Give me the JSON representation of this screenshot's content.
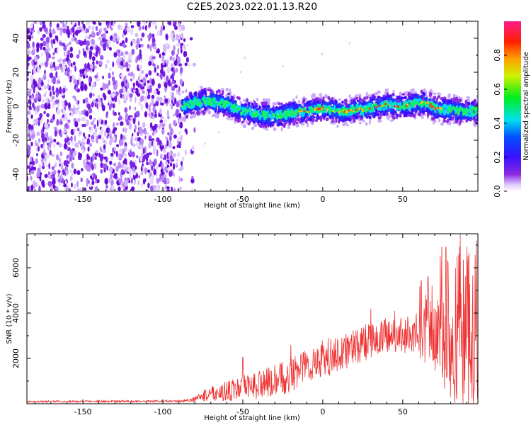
{
  "chart_data": [
    {
      "type": "heatmap",
      "title": "C2E5.2023.022.01.13.R20",
      "xlabel": "Height of straight line (km)",
      "ylabel": "Frequency (Hz)",
      "xlim": [
        -185,
        97
      ],
      "ylim": [
        -50,
        50
      ],
      "xticks": [
        -150,
        -100,
        -50,
        0,
        50
      ],
      "yticks": [
        -40,
        -20,
        0,
        20,
        40
      ],
      "noise_region_x": [
        -185,
        -88
      ],
      "signal_region_x": [
        -88,
        97
      ],
      "signal_trace": {
        "x": [
          -88,
          -80,
          -75,
          -70,
          -65,
          -60,
          -55,
          -50,
          -45,
          -40,
          -35,
          -30,
          -25,
          -20,
          -15,
          -10,
          -5,
          0,
          5,
          10,
          15,
          20,
          25,
          30,
          35,
          40,
          45,
          50,
          55,
          60,
          65,
          70,
          75,
          80,
          85,
          90,
          95
        ],
        "y": [
          0,
          2,
          3,
          3,
          2,
          1,
          -1,
          -3,
          -4,
          -5,
          -5,
          -6,
          -5,
          -4,
          -3,
          -3,
          -2,
          -1,
          -2,
          -3,
          -3,
          -2,
          -2,
          -1,
          0,
          1,
          0,
          0,
          1,
          2,
          2,
          -1,
          -2,
          -2,
          -3,
          -3,
          -3
        ]
      },
      "colorbar": {
        "label": "Normalized spectral amplitude",
        "range": [
          0.0,
          1.0
        ],
        "ticks": [
          "0.0",
          "0.2",
          "0.4",
          "0.6",
          "0.8"
        ]
      }
    },
    {
      "type": "line",
      "xlabel": "Height of straight line (km)",
      "ylabel": "SNR (10 * v/v)",
      "xlim": [
        -185,
        97
      ],
      "ylim": [
        0,
        7500
      ],
      "xticks": [
        -150,
        -100,
        -50,
        0,
        50
      ],
      "yticks": [
        2000,
        4000,
        6000
      ],
      "color": "#ee3333",
      "series": [
        {
          "name": "SNR",
          "x": [
            -185,
            -160,
            -140,
            -120,
            -100,
            -90,
            -80,
            -75,
            -70,
            -60,
            -50,
            -40,
            -30,
            -20,
            -10,
            0,
            10,
            20,
            30,
            40,
            50,
            55,
            60,
            65,
            70,
            75,
            80,
            85,
            90,
            95
          ],
          "baseline": [
            100,
            100,
            110,
            110,
            110,
            120,
            180,
            350,
            480,
            550,
            700,
            850,
            1000,
            1300,
            1700,
            2000,
            2200,
            2500,
            2800,
            3000,
            3000,
            3100,
            3100,
            3300,
            3200,
            3000,
            2800,
            2700,
            2600,
            2700
          ],
          "amplitude": [
            40,
            40,
            45,
            45,
            45,
            50,
            120,
            250,
            350,
            450,
            550,
            650,
            700,
            800,
            800,
            850,
            850,
            800,
            800,
            800,
            800,
            850,
            900,
            1100,
            1400,
            1700,
            1900,
            2000,
            2100,
            2200
          ],
          "peak_values": [
            {
              "x": -50,
              "y": 2050
            },
            {
              "x": -20,
              "y": 2600
            },
            {
              "x": 30,
              "y": 4200
            },
            {
              "x": 45,
              "y": 4100
            },
            {
              "x": 77,
              "y": 6900
            },
            {
              "x": 85,
              "y": 6600
            },
            {
              "x": 96,
              "y": 7200
            }
          ]
        }
      ]
    }
  ]
}
